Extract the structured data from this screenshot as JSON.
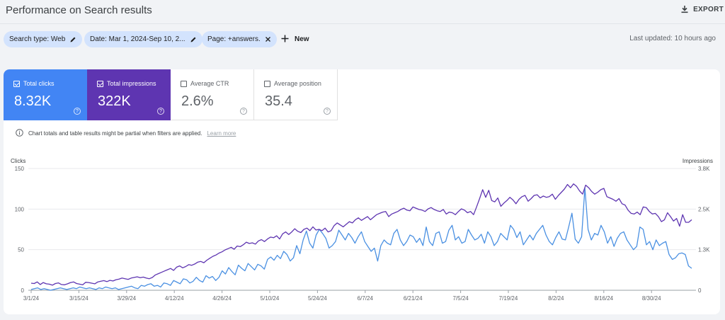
{
  "header": {
    "title": "Performance on Search results",
    "export_label": "EXPORT"
  },
  "filters": {
    "chips": [
      {
        "label": "Search type: Web",
        "icon": "pencil-icon"
      },
      {
        "label": "Date: Mar 1, 2024-Sep 10, 2...",
        "icon": "pencil-icon"
      },
      {
        "label": "Page: +answers.",
        "icon": "close-icon"
      }
    ],
    "new_label": "New",
    "last_updated": "Last updated: 10 hours ago"
  },
  "metrics": [
    {
      "label": "Total clicks",
      "value": "8.32K",
      "checked": true,
      "color": "#4285f4"
    },
    {
      "label": "Total impressions",
      "value": "322K",
      "checked": true,
      "color": "#5e35b1"
    },
    {
      "label": "Average CTR",
      "value": "2.6%",
      "checked": false
    },
    {
      "label": "Average position",
      "value": "35.4",
      "checked": false
    }
  ],
  "notice": {
    "text": "Chart totals and table results might be partial when filters are applied.",
    "link": "Learn more"
  },
  "chart_data": {
    "type": "line",
    "left_axis": {
      "label": "Clicks",
      "ticks": [
        "150",
        "100",
        "50",
        "0"
      ],
      "range": [
        0,
        150
      ]
    },
    "right_axis": {
      "label": "Impressions",
      "ticks": [
        "3.8K",
        "2.5K",
        "1.3K",
        "0"
      ],
      "range": [
        0,
        3800
      ]
    },
    "x_tick_labels": [
      "3/1/24",
      "3/15/24",
      "3/29/24",
      "4/12/24",
      "4/26/24",
      "5/10/24",
      "5/24/24",
      "6/7/24",
      "6/21/24",
      "7/5/24",
      "7/19/24",
      "8/2/24",
      "8/16/24",
      "8/30/24"
    ],
    "grid": true,
    "series": [
      {
        "name": "Total clicks",
        "axis": "left",
        "color": "#4a90e2",
        "values": [
          1,
          2,
          3,
          1,
          2,
          1,
          0,
          1,
          2,
          3,
          2,
          1,
          2,
          3,
          2,
          4,
          3,
          2,
          3,
          2,
          1,
          3,
          2,
          4,
          3,
          2,
          3,
          1,
          2,
          3,
          4,
          5,
          3,
          2,
          6,
          5,
          7,
          8,
          5,
          6,
          4,
          9,
          8,
          6,
          12,
          10,
          8,
          14,
          13,
          9,
          11,
          16,
          12,
          10,
          18,
          15,
          17,
          12,
          16,
          24,
          20,
          28,
          23,
          19,
          31,
          27,
          24,
          33,
          29,
          25,
          32,
          30,
          26,
          38,
          41,
          37,
          43,
          39,
          48,
          44,
          36,
          40,
          55,
          45,
          62,
          73,
          58,
          52,
          68,
          75,
          70,
          64,
          52,
          55,
          60,
          74,
          68,
          62,
          70,
          65,
          58,
          66,
          72,
          60,
          54,
          48,
          52,
          36,
          55,
          62,
          58,
          56,
          70,
          75,
          62,
          55,
          60,
          68,
          66,
          59,
          64,
          55,
          78,
          60,
          55,
          70,
          72,
          58,
          60,
          74,
          80,
          62,
          66,
          58,
          60,
          75,
          68,
          62,
          64,
          69,
          58,
          72,
          66,
          55,
          60,
          70,
          66,
          62,
          80,
          75,
          65,
          72,
          56,
          62,
          68,
          62,
          70,
          75,
          80,
          68,
          60,
          56,
          65,
          72,
          63,
          62,
          78,
          95,
          63,
          58,
          66,
          126,
          75,
          62,
          70,
          68,
          80,
          72,
          58,
          66,
          54,
          64,
          70,
          72,
          62,
          56,
          50,
          54,
          78,
          75,
          56,
          60,
          50,
          62,
          55,
          58,
          60,
          44,
          38,
          40,
          45,
          46,
          44,
          30,
          27
        ],
        "area": "clicks"
      },
      {
        "name": "Total impressions",
        "axis": "right",
        "color": "#5e35b1",
        "values": [
          220,
          210,
          260,
          180,
          240,
          200,
          190,
          160,
          210,
          230,
          180,
          170,
          200,
          240,
          260,
          210,
          190,
          170,
          250,
          240,
          220,
          200,
          260,
          280,
          300,
          270,
          310,
          290,
          330,
          350,
          380,
          360,
          340,
          380,
          400,
          420,
          390,
          410,
          380,
          360,
          400,
          480,
          520,
          560,
          600,
          640,
          680,
          620,
          720,
          760,
          700,
          740,
          800,
          780,
          820,
          880,
          900,
          860,
          940,
          1000,
          1060,
          1100,
          1160,
          1200,
          1260,
          1300,
          1340,
          1280,
          1380,
          1360,
          1420,
          1500,
          1460,
          1480,
          1440,
          1540,
          1580,
          1520,
          1600,
          1660,
          1640,
          1700,
          1600,
          1760,
          1820,
          1740,
          1820,
          1920,
          1840,
          1800,
          1900,
          1940,
          1860,
          1980,
          1880,
          1900,
          1860,
          1940,
          1820,
          1860,
          2020,
          2100,
          2040,
          1980,
          2060,
          2140,
          2100,
          2200,
          2260,
          2180,
          2240,
          2300,
          2200,
          2280,
          2360,
          2400,
          2440,
          2460,
          2300,
          2380,
          2420,
          2460,
          2520,
          2560,
          2500,
          2480,
          2600,
          2560,
          2520,
          2500,
          2460,
          2540,
          2580,
          2520,
          2480,
          2460,
          2520,
          2380,
          2440,
          2420,
          2360,
          2460,
          2540,
          2500,
          2420,
          2460,
          2360,
          2600,
          2860,
          3140,
          2900,
          3120,
          2800,
          2760,
          2880,
          2620,
          2720,
          2800,
          2900,
          2820,
          2700,
          2840,
          2920,
          2960,
          2780,
          2860,
          2960,
          2980,
          2880,
          2940,
          2900,
          2920,
          3000,
          2840,
          2960,
          3060,
          3160,
          3300,
          3200,
          3320,
          3240,
          3100,
          3000,
          3280,
          3200,
          3080,
          3000,
          3060,
          3140,
          3180,
          2920,
          2880,
          2840,
          2780,
          2860,
          2700,
          2660,
          2500,
          2400,
          2380,
          2440,
          2360,
          2600,
          2580,
          2460,
          2380,
          2400,
          2300,
          2140,
          2200,
          2420,
          2300,
          2160,
          2240,
          2000,
          2360,
          2120,
          2120,
          2200
        ],
        "area": "impressions"
      }
    ]
  }
}
